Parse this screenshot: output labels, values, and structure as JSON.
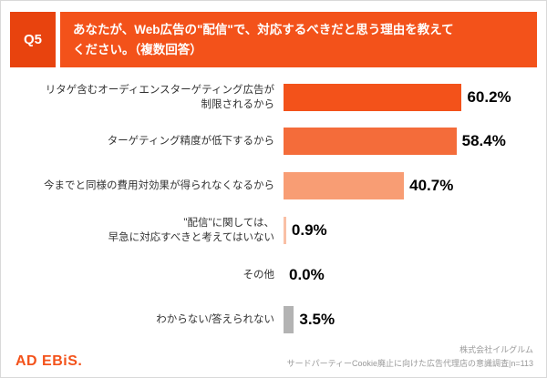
{
  "header": {
    "tag": "Q5",
    "title": "あなたが、Web広告の\"配信\"で、対応するべきだと思う理由を教えて\nください。（複数回答）",
    "tag_color": "#e8430e",
    "title_color": "#f3521a"
  },
  "chart_data": {
    "type": "bar",
    "orientation": "horizontal",
    "title": "あなたが、Web広告の\"配信\"で、対応するべきだと思う理由を教えてください。（複数回答）",
    "categories": [
      "リタゲ含むオーディエンスターゲティング広告が\n制限されるから",
      "ターゲティング精度が低下するから",
      "今までと同様の費用対効果が得られなくなるから",
      "\"配信\"に関しては、\n早急に対応すべきと考えてはいない",
      "その他",
      "わからない/答えられない"
    ],
    "values": [
      60.2,
      58.4,
      40.7,
      0.9,
      0.0,
      3.5
    ],
    "value_labels": [
      "60.2%",
      "58.4%",
      "40.7%",
      "0.9%",
      "0.0%",
      "3.5%"
    ],
    "bar_colors": [
      "#f3521a",
      "#f46c3a",
      "#f89d74",
      "#f9c0a6",
      "#f9c0a6",
      "#b3b3b3"
    ],
    "xlim": [
      0,
      85
    ],
    "grid": false,
    "legend": false,
    "n": 113
  },
  "footer": {
    "logo": "AD EBiS.",
    "logo_color": "#f3521a",
    "company": "株式会社イルグルム",
    "survey": "サードパーティーCookie廃止に向けた広告代理店の意識調査|n=113"
  }
}
